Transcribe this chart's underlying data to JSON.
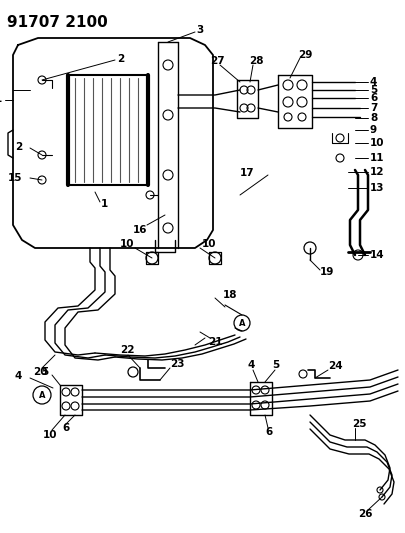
{
  "title": "91707 2100",
  "bg_color": "#ffffff",
  "line_color": "#000000",
  "figsize": [
    4.05,
    5.33
  ],
  "dpi": 100,
  "title_fontsize": 11,
  "label_fontsize": 7
}
